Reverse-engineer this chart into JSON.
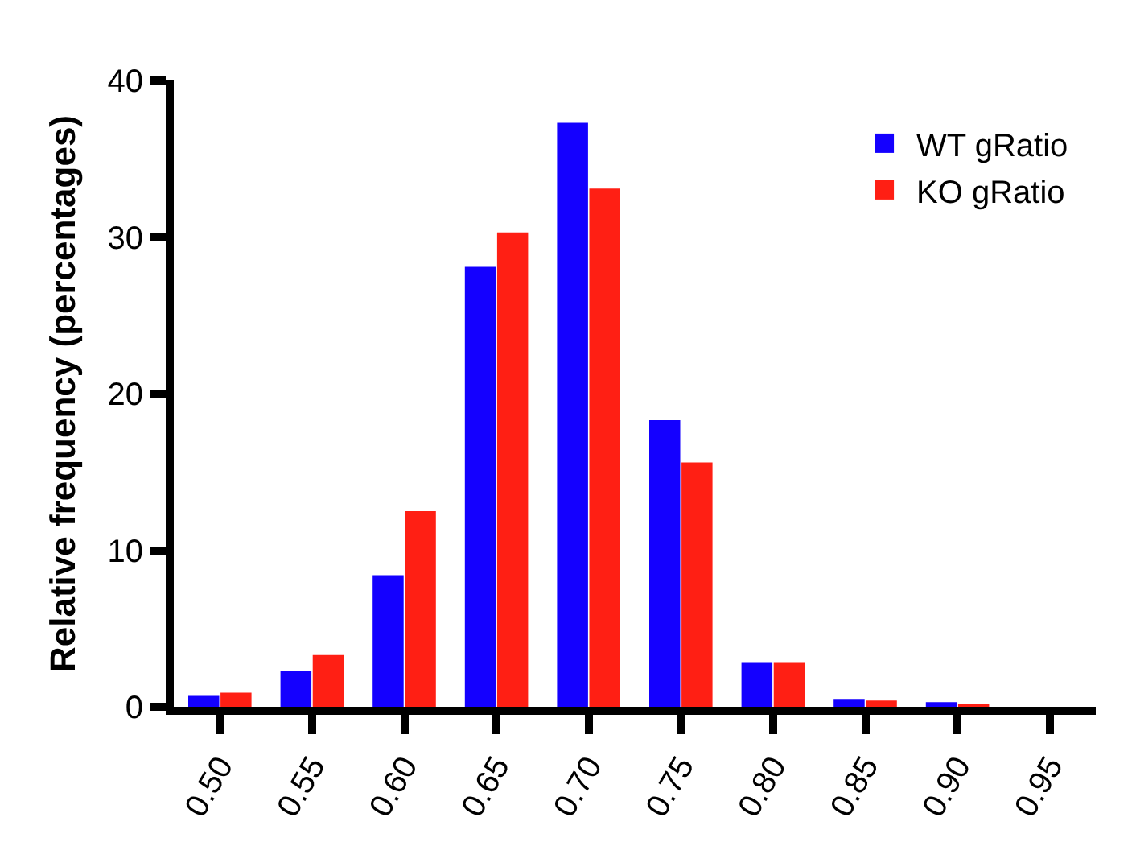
{
  "chart_data": {
    "type": "bar",
    "ylabel": "Relative frequency (percentages)",
    "categories": [
      "0.50",
      "0.55",
      "0.60",
      "0.65",
      "0.70",
      "0.75",
      "0.80",
      "0.85",
      "0.90",
      "0.95"
    ],
    "series": [
      {
        "name": "WT gRatio",
        "color": "#1400ff",
        "values": [
          0.7,
          2.3,
          8.4,
          28.1,
          37.3,
          18.3,
          2.8,
          0.5,
          0.3,
          0
        ]
      },
      {
        "name": "KO gRatio",
        "color": "#ff1f14",
        "values": [
          0.9,
          3.3,
          12.5,
          30.3,
          33.1,
          15.6,
          2.8,
          0.4,
          0.2,
          0
        ]
      }
    ],
    "ylim": [
      0,
      40
    ],
    "yticks": [
      0,
      10,
      20,
      30,
      40
    ],
    "legend": "top right"
  }
}
